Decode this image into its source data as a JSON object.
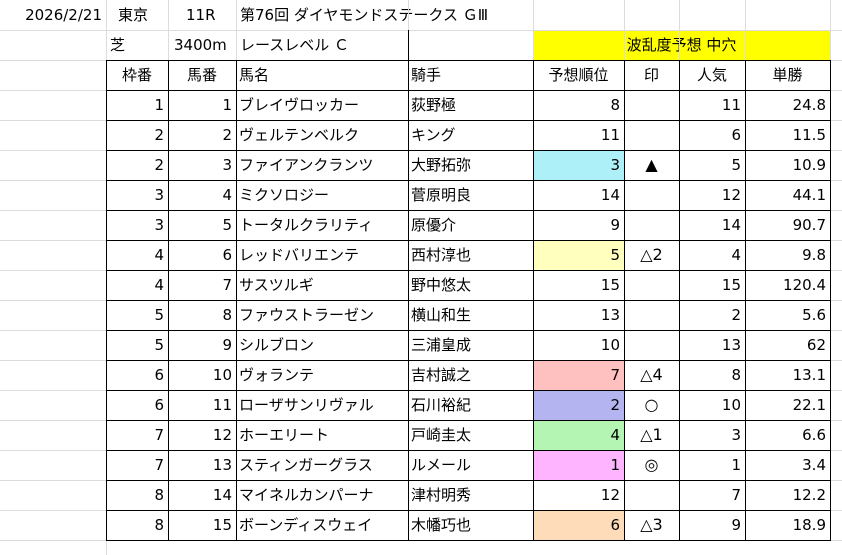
{
  "meta": {
    "date": "2026/2/21",
    "venue": "東京",
    "race_no": "11R",
    "race_name": "第76回 ダイヤモンドステークス ＧⅢ",
    "surface": "芝",
    "distance": "3400m",
    "race_level": "レースレベル Ｃ",
    "forecast": "波乱度予想 中穴",
    "forecast_bg": "#ffff00"
  },
  "columns": [
    "枠番",
    "馬番",
    "馬名",
    "騎手",
    "予想順位",
    "印",
    "人気",
    "単勝"
  ],
  "rows": [
    {
      "waku": "1",
      "num": "1",
      "horse": "ブレイヴロッカー",
      "jockey": "荻野極",
      "rank": "8",
      "mark": "",
      "pop": "11",
      "odds": "24.8",
      "rank_color": ""
    },
    {
      "waku": "2",
      "num": "2",
      "horse": "ヴェルテンベルク",
      "jockey": "キング",
      "rank": "11",
      "mark": "",
      "pop": "6",
      "odds": "11.5",
      "rank_color": ""
    },
    {
      "waku": "2",
      "num": "3",
      "horse": "ファイアンクランツ",
      "jockey": "大野拓弥",
      "rank": "3",
      "mark": "▲",
      "pop": "5",
      "odds": "10.9",
      "rank_color": "#aef0f7"
    },
    {
      "waku": "3",
      "num": "4",
      "horse": "ミクソロジー",
      "jockey": "菅原明良",
      "rank": "14",
      "mark": "",
      "pop": "12",
      "odds": "44.1",
      "rank_color": ""
    },
    {
      "waku": "3",
      "num": "5",
      "horse": "トータルクラリティ",
      "jockey": "原優介",
      "rank": "9",
      "mark": "",
      "pop": "14",
      "odds": "90.7",
      "rank_color": ""
    },
    {
      "waku": "4",
      "num": "6",
      "horse": "レッドバリエンテ",
      "jockey": "西村淳也",
      "rank": "5",
      "mark": "△2",
      "pop": "4",
      "odds": "9.8",
      "rank_color": "#ffffbe"
    },
    {
      "waku": "4",
      "num": "7",
      "horse": "サスツルギ",
      "jockey": "野中悠太",
      "rank": "15",
      "mark": "",
      "pop": "15",
      "odds": "120.4",
      "rank_color": ""
    },
    {
      "waku": "5",
      "num": "8",
      "horse": "ファウストラーゼン",
      "jockey": "横山和生",
      "rank": "13",
      "mark": "",
      "pop": "2",
      "odds": "5.6",
      "rank_color": ""
    },
    {
      "waku": "5",
      "num": "9",
      "horse": "シルブロン",
      "jockey": "三浦皇成",
      "rank": "10",
      "mark": "",
      "pop": "13",
      "odds": "62",
      "rank_color": ""
    },
    {
      "waku": "6",
      "num": "10",
      "horse": "ヴォランテ",
      "jockey": "吉村誠之",
      "rank": "7",
      "mark": "△4",
      "pop": "8",
      "odds": "13.1",
      "rank_color": "#ffc0c0"
    },
    {
      "waku": "6",
      "num": "11",
      "horse": "ローザサンリヴァル",
      "jockey": "石川裕紀",
      "rank": "2",
      "mark": "○",
      "pop": "10",
      "odds": "22.1",
      "rank_color": "#b4b4f0"
    },
    {
      "waku": "7",
      "num": "12",
      "horse": "ホーエリート",
      "jockey": "戸崎圭太",
      "rank": "4",
      "mark": "△1",
      "pop": "3",
      "odds": "6.6",
      "rank_color": "#b4f5b4"
    },
    {
      "waku": "7",
      "num": "13",
      "horse": "スティンガーグラス",
      "jockey": "ルメール",
      "rank": "1",
      "mark": "◎",
      "pop": "1",
      "odds": "3.4",
      "rank_color": "#ffb4ff"
    },
    {
      "waku": "8",
      "num": "14",
      "horse": "マイネルカンパーナ",
      "jockey": "津村明秀",
      "rank": "12",
      "mark": "",
      "pop": "7",
      "odds": "12.2",
      "rank_color": ""
    },
    {
      "waku": "8",
      "num": "15",
      "horse": "ボーンディスウェイ",
      "jockey": "木幡巧也",
      "rank": "6",
      "mark": "△3",
      "pop": "9",
      "odds": "18.9",
      "rank_color": "#ffdcb9"
    }
  ]
}
